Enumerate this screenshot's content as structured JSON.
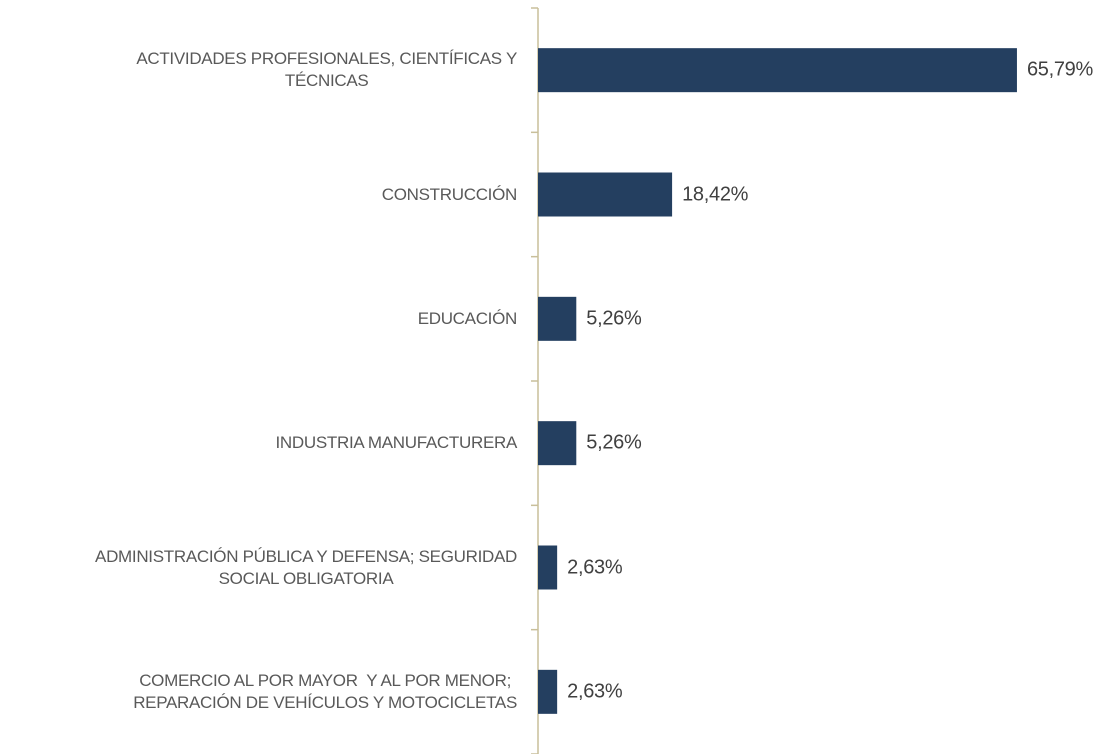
{
  "chart_data": {
    "type": "barh",
    "categories": [
      "ACTIVIDADES PROFESIONALES, CIENTÍFICAS Y\nTÉCNICAS",
      "CONSTRUCCIÓN",
      "EDUCACIÓN",
      "INDUSTRIA MANUFACTURERA",
      "ADMINISTRACIÓN PÚBLICA Y DEFENSA; SEGURIDAD\nSOCIAL OBLIGATORIA",
      "COMERCIO AL POR MAYOR  Y AL POR MENOR;\nREPARACIÓN DE VEHÍCULOS Y MOTOCICLETAS"
    ],
    "values": [
      65.79,
      18.42,
      5.26,
      5.26,
      2.63,
      2.63
    ],
    "value_labels": [
      "65,79%",
      "18,42%",
      "5,26%",
      "5,26%",
      "2,63%",
      "2,63%"
    ],
    "color": "#243f60"
  }
}
